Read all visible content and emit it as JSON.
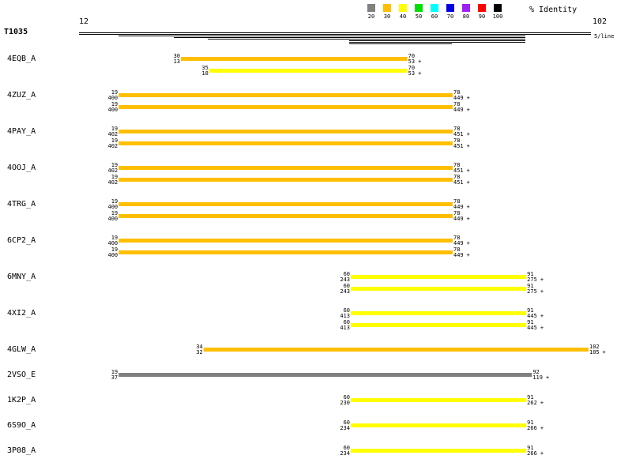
{
  "header": {
    "query": "T1035",
    "start": 12,
    "end": 102,
    "scale": "5/line"
  },
  "legend": {
    "title": "% Identity",
    "items": [
      {
        "label": 20,
        "color": "#808080"
      },
      {
        "label": 30,
        "color": "#ffbf00"
      },
      {
        "label": 40,
        "color": "#ffff00"
      },
      {
        "label": 50,
        "color": "#00e000"
      },
      {
        "label": 60,
        "color": "#00ffff"
      },
      {
        "label": 70,
        "color": "#0000e0"
      },
      {
        "label": 80,
        "color": "#a020f0"
      },
      {
        "label": 90,
        "color": "#ff0000"
      },
      {
        "label": 100,
        "color": "#000000"
      }
    ]
  },
  "hits": [
    {
      "name": "4EQB_A",
      "alignments": [
        {
          "q_start": 30,
          "t_start": 13,
          "q_end": 70,
          "t_end": 53,
          "strand": "+",
          "color": "#ffbf00"
        },
        {
          "q_start": 35,
          "t_start": 18,
          "q_end": 70,
          "t_end": 53,
          "strand": "+",
          "color": "#ffff00"
        }
      ]
    },
    {
      "name": "4ZUZ_A",
      "alignments": [
        {
          "q_start": 19,
          "t_start": 400,
          "q_end": 78,
          "t_end": 449,
          "strand": "+",
          "color": "#ffbf00"
        },
        {
          "q_start": 19,
          "t_start": 400,
          "q_end": 78,
          "t_end": 449,
          "strand": "+",
          "color": "#ffbf00"
        }
      ]
    },
    {
      "name": "4PAY_A",
      "alignments": [
        {
          "q_start": 19,
          "t_start": 402,
          "q_end": 78,
          "t_end": 451,
          "strand": "+",
          "color": "#ffbf00"
        },
        {
          "q_start": 19,
          "t_start": 402,
          "q_end": 78,
          "t_end": 451,
          "strand": "+",
          "color": "#ffbf00"
        }
      ]
    },
    {
      "name": "4OOJ_A",
      "alignments": [
        {
          "q_start": 19,
          "t_start": 402,
          "q_end": 78,
          "t_end": 451,
          "strand": "+",
          "color": "#ffbf00"
        },
        {
          "q_start": 19,
          "t_start": 402,
          "q_end": 78,
          "t_end": 451,
          "strand": "+",
          "color": "#ffbf00"
        }
      ]
    },
    {
      "name": "4TRG_A",
      "alignments": [
        {
          "q_start": 19,
          "t_start": 400,
          "q_end": 78,
          "t_end": 449,
          "strand": "+",
          "color": "#ffbf00"
        },
        {
          "q_start": 19,
          "t_start": 400,
          "q_end": 78,
          "t_end": 449,
          "strand": "+",
          "color": "#ffbf00"
        }
      ]
    },
    {
      "name": "6CP2_A",
      "alignments": [
        {
          "q_start": 19,
          "t_start": 400,
          "q_end": 78,
          "t_end": 449,
          "strand": "+",
          "color": "#ffbf00"
        },
        {
          "q_start": 19,
          "t_start": 400,
          "q_end": 78,
          "t_end": 449,
          "strand": "+",
          "color": "#ffbf00"
        }
      ]
    },
    {
      "name": "6MNY_A",
      "alignments": [
        {
          "q_start": 60,
          "t_start": 243,
          "q_end": 91,
          "t_end": 275,
          "strand": "+",
          "color": "#ffff00"
        },
        {
          "q_start": 60,
          "t_start": 243,
          "q_end": 91,
          "t_end": 275,
          "strand": "+",
          "color": "#ffff00"
        }
      ]
    },
    {
      "name": "4XI2_A",
      "alignments": [
        {
          "q_start": 60,
          "t_start": 413,
          "q_end": 91,
          "t_end": 445,
          "strand": "+",
          "color": "#ffff00"
        },
        {
          "q_start": 60,
          "t_start": 413,
          "q_end": 91,
          "t_end": 445,
          "strand": "+",
          "color": "#ffff00"
        }
      ]
    },
    {
      "name": "4GLW_A",
      "alignments": [
        {
          "q_start": 34,
          "t_start": 32,
          "q_end": 102,
          "t_end": 105,
          "strand": "+",
          "color": "#ffbf00"
        }
      ]
    },
    {
      "name": "2VSO_E",
      "alignments": [
        {
          "q_start": 19,
          "t_start": 37,
          "q_end": 92,
          "t_end": 119,
          "strand": "+",
          "color": "#808080"
        }
      ]
    },
    {
      "name": "1K2P_A",
      "alignments": [
        {
          "q_start": 60,
          "t_start": 230,
          "q_end": 91,
          "t_end": 262,
          "strand": "+",
          "color": "#ffff00"
        }
      ]
    },
    {
      "name": "6S9O_A",
      "alignments": [
        {
          "q_start": 60,
          "t_start": 234,
          "q_end": 91,
          "t_end": 266,
          "strand": "+",
          "color": "#ffff00"
        }
      ]
    },
    {
      "name": "3P08_A",
      "alignments": [
        {
          "q_start": 60,
          "t_start": 234,
          "q_end": 91,
          "t_end": 266,
          "strand": "+",
          "color": "#ffff00"
        }
      ]
    }
  ]
}
